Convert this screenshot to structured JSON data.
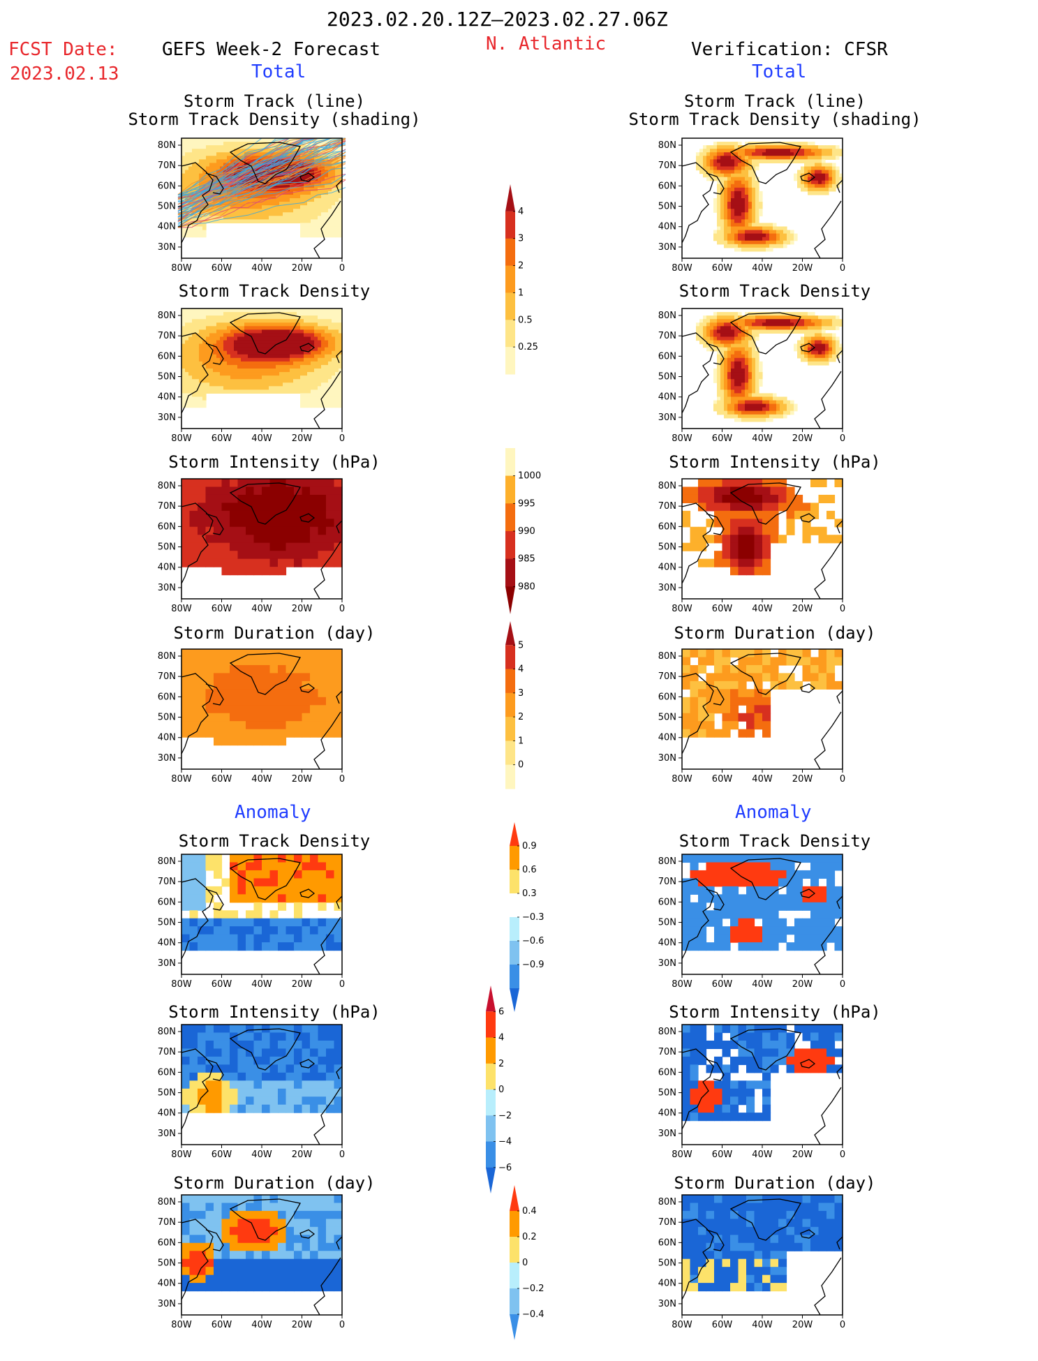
{
  "header": {
    "date_range": "2023.02.20.12Z–2023.02.27.06Z",
    "fcst_label": "FCST Date:",
    "fcst_date": "2023.02.13",
    "left_title": "GEFS Week-2 Forecast",
    "center_title": "N. Atlantic",
    "right_title": "Verification: CFSR",
    "left_total": "Total",
    "right_total": "Total",
    "left_anomaly": "Anomaly",
    "right_anomaly": "Anomaly"
  },
  "axes": {
    "x_ticks": [
      "80W",
      "60W",
      "40W",
      "20W",
      "0"
    ],
    "y_ticks": [
      "80N",
      "70N",
      "60N",
      "50N",
      "40N",
      "30N"
    ]
  },
  "panels": {
    "row1": {
      "title_line1": "Storm Track (line)",
      "title_line2": "Storm Track Density (shading)"
    },
    "row2": {
      "title": "Storm Track Density"
    },
    "row3": {
      "title": "Storm Intensity (hPa)"
    },
    "row4": {
      "title": "Storm Duration (day)"
    },
    "row5": {
      "title": "Storm Track Density"
    },
    "row6": {
      "title": "Storm Intensity (hPa)"
    },
    "row7": {
      "title": "Storm Duration (day)"
    }
  },
  "colorbars": {
    "density": {
      "labels": [
        "4",
        "3",
        "2",
        "1",
        "0.5",
        "0.25"
      ],
      "colors": [
        "#a50f15",
        "#d7301f",
        "#f46d0f",
        "#fd9b1e",
        "#fdc040",
        "#fee588",
        "#fff6bf"
      ]
    },
    "intensity": {
      "labels": [
        "1000",
        "995",
        "990",
        "985",
        "980"
      ],
      "colors": [
        "#fff6bf",
        "#fdb02b",
        "#f46d0f",
        "#d7301f",
        "#a50f15",
        "#8b0000"
      ]
    },
    "duration": {
      "labels": [
        "5",
        "4",
        "3",
        "2",
        "1",
        "0"
      ],
      "colors": [
        "#a50f15",
        "#d7301f",
        "#f46d0f",
        "#fd9b1e",
        "#fdc040",
        "#fee588",
        "#fff6bf"
      ]
    },
    "density_anom": {
      "labels": [
        "0.9",
        "0.6",
        "0.3",
        "−0.3",
        "−0.6",
        "−0.9"
      ],
      "colors": [
        "#ff3a10",
        "#ff9a00",
        "#fde26a",
        "#ffffff",
        "#b8eefc",
        "#7fc2f0",
        "#3a8fe6",
        "#1a66d6"
      ]
    },
    "intensity_anom": {
      "labels": [
        "6",
        "4",
        "2",
        "0",
        "−2",
        "−4",
        "−6"
      ],
      "colors": [
        "#c8102e",
        "#ff3a10",
        "#ff9a00",
        "#fde26a",
        "#b8eefc",
        "#7fc2f0",
        "#3a8fe6",
        "#1a66d6"
      ]
    },
    "duration_anom": {
      "labels": [
        "0.4",
        "0.2",
        "0",
        "−0.2",
        "−0.4"
      ],
      "colors": [
        "#ff3a10",
        "#ff9a00",
        "#fde26a",
        "#b8eefc",
        "#7fc2f0",
        "#3a8fe6"
      ]
    }
  }
}
